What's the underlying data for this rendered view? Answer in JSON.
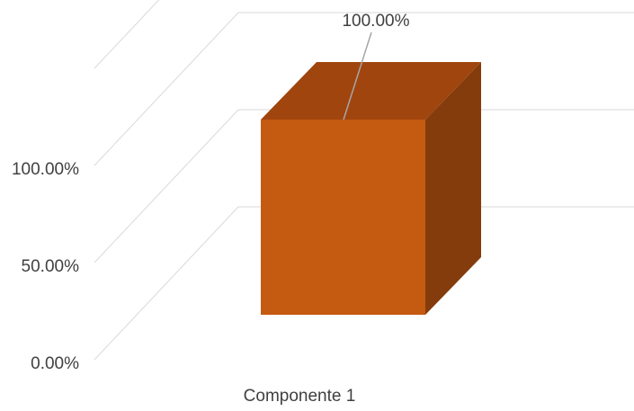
{
  "chart_data": {
    "type": "bar",
    "style": "3d-column",
    "categories": [
      "Componente 1"
    ],
    "values": [
      100.0
    ],
    "data_labels": [
      "100.00%"
    ],
    "ylim": [
      0,
      100
    ],
    "y_ticks": [
      0,
      50,
      100
    ],
    "y_tick_labels": [
      "0.00%",
      "50.00%",
      "100.00%"
    ],
    "grid": true,
    "legend": "none",
    "colors": {
      "front": "#C55A11",
      "top": "#A0450E",
      "side": "#843C0C",
      "grid": "#d9d9d9",
      "text": "#404040"
    }
  }
}
